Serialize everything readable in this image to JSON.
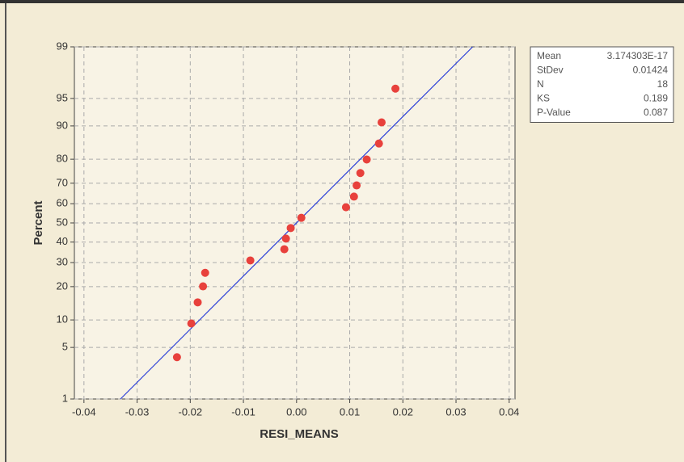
{
  "chart_data": {
    "type": "scatter",
    "yscale": "probability",
    "xlabel": "RESI_MEANS",
    "ylabel": "Percent",
    "x": [
      -0.0225,
      -0.0198,
      -0.0186,
      -0.0176,
      -0.0172,
      -0.0087,
      -0.0023,
      -0.002,
      -0.0011,
      0.0009,
      0.0093,
      0.0108,
      0.0113,
      0.012,
      0.0132,
      0.0155,
      0.016,
      0.0186
    ],
    "values": [
      3.8,
      9.2,
      14.7,
      20.1,
      25.5,
      31.0,
      36.4,
      41.8,
      47.3,
      52.7,
      58.2,
      63.6,
      69.0,
      74.5,
      79.9,
      85.3,
      90.8,
      96.2
    ],
    "color": "#e8413c",
    "line_color": "#2b3fd8",
    "xlim": [
      -0.0418,
      0.0411
    ],
    "ylim": [
      1,
      99
    ],
    "xticks": [
      -0.04,
      -0.03,
      -0.02,
      -0.01,
      {
        "value": 0,
        "label": "0.00"
      },
      0.01,
      0.02,
      0.03,
      0.04
    ],
    "yticks": [
      1,
      5,
      10,
      20,
      30,
      40,
      50,
      60,
      70,
      80,
      90,
      95,
      99
    ],
    "grid": true,
    "stats": {
      "rows": [
        [
          "Mean",
          "3.174303E-17"
        ],
        [
          "StDev",
          "0.01424"
        ],
        [
          "N",
          "18"
        ],
        [
          "KS",
          "0.189"
        ],
        [
          "P-Value",
          "0.087"
        ]
      ]
    }
  }
}
